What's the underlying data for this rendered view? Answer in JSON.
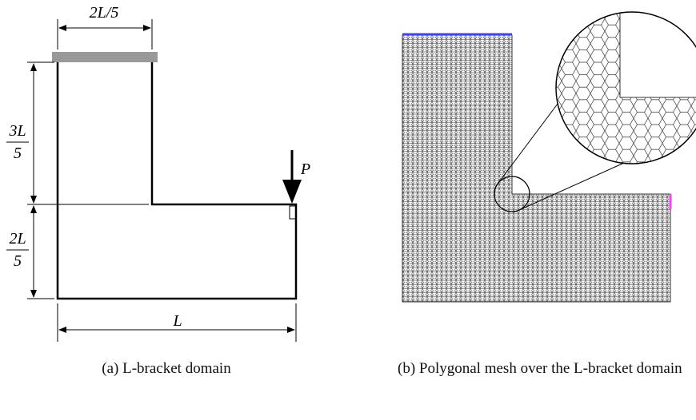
{
  "figure_a": {
    "dim_top": "2L/5",
    "dim_upper_num": "3L",
    "dim_upper_den": "5",
    "dim_lower_num": "2L",
    "dim_lower_den": "5",
    "dim_bottom": "L",
    "load": "P",
    "caption": "(a) L-bracket domain"
  },
  "figure_b": {
    "caption": "(b) Polygonal mesh over the L-bracket domain"
  }
}
